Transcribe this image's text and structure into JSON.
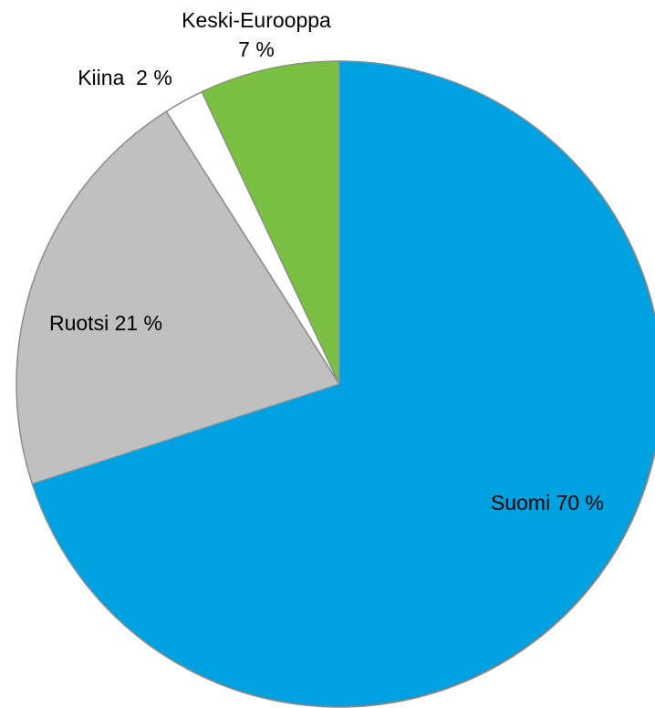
{
  "chart_data": {
    "type": "pie",
    "title": "",
    "start_angle": 0,
    "direction": "clockwise",
    "slices": [
      {
        "name": "Suomi",
        "value": 70,
        "color": "#00a1e0",
        "label": "Suomi 70 %"
      },
      {
        "name": "Ruotsi",
        "value": 21,
        "color": "#c0c0c0",
        "label": "Ruotsi 21 %"
      },
      {
        "name": "Kiina",
        "value": 2,
        "color": "#ffffff",
        "label": "Kiina  2 %"
      },
      {
        "name": "Keski-Eurooppa",
        "value": 7,
        "color": "#7ac143",
        "label_lines": [
          "Keski-Eurooppa",
          "7 %"
        ]
      }
    ]
  }
}
